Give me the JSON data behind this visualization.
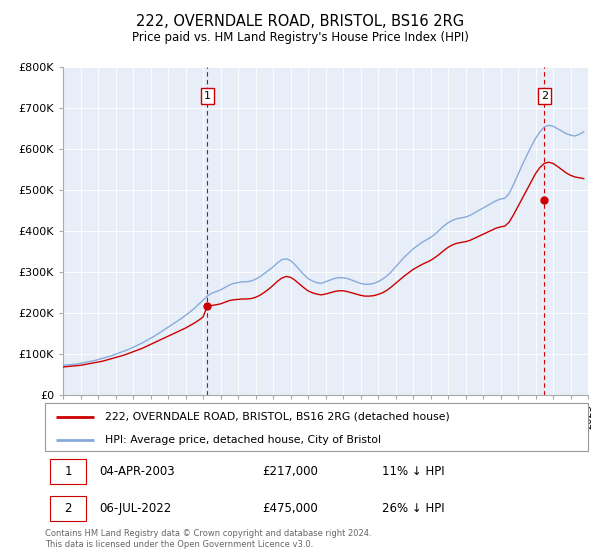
{
  "title": "222, OVERNDALE ROAD, BRISTOL, BS16 2RG",
  "subtitle": "Price paid vs. HM Land Registry's House Price Index (HPI)",
  "ylabel_ticks": [
    "£0",
    "£100K",
    "£200K",
    "£300K",
    "£400K",
    "£500K",
    "£600K",
    "£700K",
    "£800K"
  ],
  "ytick_values": [
    0,
    100000,
    200000,
    300000,
    400000,
    500000,
    600000,
    700000,
    800000
  ],
  "ylim": [
    0,
    800000
  ],
  "legend_line1": "222, OVERNDALE ROAD, BRISTOL, BS16 2RG (detached house)",
  "legend_line2": "HPI: Average price, detached house, City of Bristol",
  "transaction1_date": "04-APR-2003",
  "transaction1_price": "£217,000",
  "transaction1_hpi": "11% ↓ HPI",
  "transaction2_date": "06-JUL-2022",
  "transaction2_price": "£475,000",
  "transaction2_hpi": "26% ↓ HPI",
  "footer": "Contains HM Land Registry data © Crown copyright and database right 2024.\nThis data is licensed under the Open Government Licence v3.0.",
  "red_color": "#cc0000",
  "blue_color": "#88aadd",
  "plot_bg": "#e8eef8",
  "transaction1_x": 2003.25,
  "transaction1_y": 217000,
  "transaction2_x": 2022.5,
  "transaction2_y": 475000,
  "xmin": 1995,
  "xmax": 2025,
  "hpi_x": [
    1995.0,
    1995.25,
    1995.5,
    1995.75,
    1996.0,
    1996.25,
    1996.5,
    1996.75,
    1997.0,
    1997.25,
    1997.5,
    1997.75,
    1998.0,
    1998.25,
    1998.5,
    1998.75,
    1999.0,
    1999.25,
    1999.5,
    1999.75,
    2000.0,
    2000.25,
    2000.5,
    2000.75,
    2001.0,
    2001.25,
    2001.5,
    2001.75,
    2002.0,
    2002.25,
    2002.5,
    2002.75,
    2003.0,
    2003.25,
    2003.5,
    2003.75,
    2004.0,
    2004.25,
    2004.5,
    2004.75,
    2005.0,
    2005.25,
    2005.5,
    2005.75,
    2006.0,
    2006.25,
    2006.5,
    2006.75,
    2007.0,
    2007.25,
    2007.5,
    2007.75,
    2008.0,
    2008.25,
    2008.5,
    2008.75,
    2009.0,
    2009.25,
    2009.5,
    2009.75,
    2010.0,
    2010.25,
    2010.5,
    2010.75,
    2011.0,
    2011.25,
    2011.5,
    2011.75,
    2012.0,
    2012.25,
    2012.5,
    2012.75,
    2013.0,
    2013.25,
    2013.5,
    2013.75,
    2014.0,
    2014.25,
    2014.5,
    2014.75,
    2015.0,
    2015.25,
    2015.5,
    2015.75,
    2016.0,
    2016.25,
    2016.5,
    2016.75,
    2017.0,
    2017.25,
    2017.5,
    2017.75,
    2018.0,
    2018.25,
    2018.5,
    2018.75,
    2019.0,
    2019.25,
    2019.5,
    2019.75,
    2020.0,
    2020.25,
    2020.5,
    2020.75,
    2021.0,
    2021.25,
    2021.5,
    2021.75,
    2022.0,
    2022.25,
    2022.5,
    2022.75,
    2023.0,
    2023.25,
    2023.5,
    2023.75,
    2024.0,
    2024.25,
    2024.5,
    2024.75
  ],
  "hpi_y": [
    72000,
    73000,
    74000,
    75000,
    77000,
    79000,
    81000,
    83000,
    86000,
    89000,
    92000,
    95000,
    99000,
    103000,
    107000,
    111000,
    116000,
    121000,
    126000,
    132000,
    138000,
    144000,
    151000,
    158000,
    165000,
    172000,
    179000,
    186000,
    194000,
    202000,
    211000,
    221000,
    231000,
    241000,
    248000,
    252000,
    256000,
    262000,
    268000,
    272000,
    274000,
    276000,
    276000,
    278000,
    282000,
    288000,
    296000,
    304000,
    312000,
    322000,
    330000,
    332000,
    328000,
    318000,
    306000,
    294000,
    284000,
    278000,
    274000,
    272000,
    276000,
    280000,
    284000,
    286000,
    286000,
    284000,
    280000,
    276000,
    272000,
    270000,
    270000,
    272000,
    276000,
    282000,
    290000,
    300000,
    312000,
    324000,
    336000,
    346000,
    356000,
    364000,
    372000,
    378000,
    384000,
    392000,
    402000,
    412000,
    420000,
    426000,
    430000,
    432000,
    434000,
    438000,
    444000,
    450000,
    456000,
    462000,
    468000,
    474000,
    478000,
    480000,
    492000,
    514000,
    538000,
    562000,
    584000,
    606000,
    626000,
    642000,
    654000,
    658000,
    656000,
    650000,
    644000,
    638000,
    634000,
    632000,
    636000,
    642000
  ],
  "prop_x": [
    1995.0,
    1995.25,
    1995.5,
    1995.75,
    1996.0,
    1996.25,
    1996.5,
    1996.75,
    1997.0,
    1997.25,
    1997.5,
    1997.75,
    1998.0,
    1998.25,
    1998.5,
    1998.75,
    1999.0,
    1999.25,
    1999.5,
    1999.75,
    2000.0,
    2000.25,
    2000.5,
    2000.75,
    2001.0,
    2001.25,
    2001.5,
    2001.75,
    2002.0,
    2002.25,
    2002.5,
    2002.75,
    2003.0,
    2003.25,
    2003.5,
    2003.75,
    2004.0,
    2004.25,
    2004.5,
    2004.75,
    2005.0,
    2005.25,
    2005.5,
    2005.75,
    2006.0,
    2006.25,
    2006.5,
    2006.75,
    2007.0,
    2007.25,
    2007.5,
    2007.75,
    2008.0,
    2008.25,
    2008.5,
    2008.75,
    2009.0,
    2009.25,
    2009.5,
    2009.75,
    2010.0,
    2010.25,
    2010.5,
    2010.75,
    2011.0,
    2011.25,
    2011.5,
    2011.75,
    2012.0,
    2012.25,
    2012.5,
    2012.75,
    2013.0,
    2013.25,
    2013.5,
    2013.75,
    2014.0,
    2014.25,
    2014.5,
    2014.75,
    2015.0,
    2015.25,
    2015.5,
    2015.75,
    2016.0,
    2016.25,
    2016.5,
    2016.75,
    2017.0,
    2017.25,
    2017.5,
    2017.75,
    2018.0,
    2018.25,
    2018.5,
    2018.75,
    2019.0,
    2019.25,
    2019.5,
    2019.75,
    2020.0,
    2020.25,
    2020.5,
    2020.75,
    2021.0,
    2021.25,
    2021.5,
    2021.75,
    2022.0,
    2022.25,
    2022.5,
    2022.75,
    2023.0,
    2023.25,
    2023.5,
    2023.75,
    2024.0,
    2024.25,
    2024.5,
    2024.75
  ],
  "prop_y": [
    68000,
    69000,
    70000,
    71000,
    72000,
    74000,
    76000,
    78000,
    80000,
    82000,
    85000,
    88000,
    91000,
    94000,
    97000,
    101000,
    105000,
    109000,
    113000,
    118000,
    123000,
    128000,
    133000,
    138000,
    143000,
    148000,
    153000,
    158000,
    163000,
    169000,
    175000,
    182000,
    190000,
    217000,
    218000,
    220000,
    222000,
    226000,
    230000,
    232000,
    233000,
    234000,
    234000,
    235000,
    238000,
    243000,
    250000,
    258000,
    267000,
    277000,
    285000,
    289000,
    287000,
    280000,
    271000,
    262000,
    254000,
    249000,
    246000,
    244000,
    246000,
    249000,
    252000,
    254000,
    254000,
    252000,
    249000,
    246000,
    243000,
    241000,
    241000,
    242000,
    245000,
    249000,
    255000,
    263000,
    272000,
    281000,
    290000,
    298000,
    306000,
    312000,
    318000,
    323000,
    328000,
    335000,
    343000,
    352000,
    360000,
    366000,
    370000,
    372000,
    374000,
    377000,
    382000,
    387000,
    392000,
    397000,
    402000,
    407000,
    410000,
    412000,
    422000,
    440000,
    460000,
    480000,
    500000,
    520000,
    540000,
    555000,
    565000,
    568000,
    565000,
    558000,
    550000,
    542000,
    536000,
    532000,
    530000,
    528000
  ]
}
